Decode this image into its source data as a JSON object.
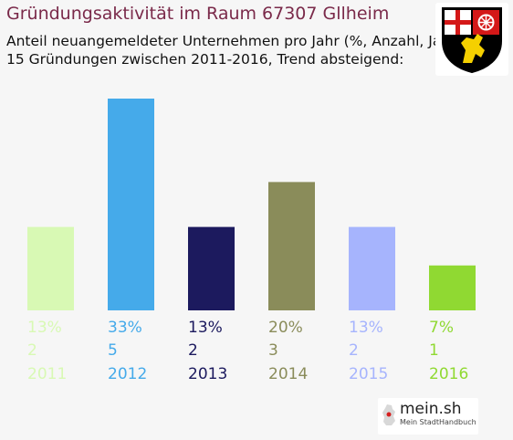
{
  "header": {
    "title": "Gründungsaktivität im Raum 67307 Gllheim",
    "subtitle_line1": "Anteil neuangemeldeter Unternehmen pro Jahr (%, Anzahl, Jahr)",
    "subtitle_line2": "15 Gründungen zwischen 2011-2016, Trend absteigend:"
  },
  "coat_of_arms_icon": "rhineland-palatinate-coat-of-arms",
  "brand": {
    "name": "mein.sh",
    "tagline": "Mein StadtHandbuch",
    "icon": "germany-map-icon"
  },
  "chart_data": {
    "type": "bar",
    "categories": [
      "2011",
      "2012",
      "2013",
      "2014",
      "2015",
      "2016"
    ],
    "values": [
      13,
      33,
      13,
      20,
      13,
      7
    ],
    "percent_labels": [
      "13%",
      "33%",
      "13%",
      "20%",
      "13%",
      "7%"
    ],
    "counts": [
      "2",
      "5",
      "2",
      "3",
      "2",
      "1"
    ],
    "colors": [
      "#d8f9b4",
      "#45aaea",
      "#1c1a5e",
      "#8a8c5a",
      "#a6b4fd",
      "#90d932"
    ],
    "ylim": [
      0,
      33
    ],
    "grid": false,
    "legend": "none"
  }
}
